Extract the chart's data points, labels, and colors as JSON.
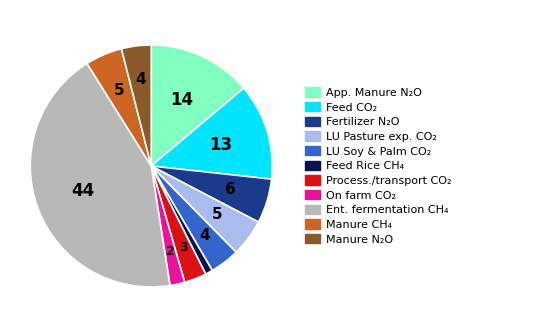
{
  "labels": [
    "App. Manure N₂O",
    "Feed CO₂",
    "Fertilizer N₂O",
    "LU Pasture exp. CO₂",
    "LU Soy & Palm CO₂",
    "Feed Rice CH₄",
    "Process./transport CO₂",
    "On farm CO₂",
    "Ent. fermentation CH₄",
    "Manure CH₄",
    "Manure N₂O"
  ],
  "values": [
    14,
    13,
    6,
    5,
    4,
    1,
    3,
    2,
    44,
    5,
    4
  ],
  "display_values": [
    "14",
    "13",
    "6",
    "5",
    "4",
    "",
    "3",
    "2",
    "44",
    "5",
    "4"
  ],
  "colors": [
    "#7FFFC0",
    "#00E5FF",
    "#1A3A8C",
    "#AABBEE",
    "#3366CC",
    "#0A1050",
    "#DD1111",
    "#EE1199",
    "#B8B8B8",
    "#CC6622",
    "#8B5A2B"
  ],
  "figsize": [
    5.5,
    3.32
  ],
  "dpi": 100,
  "startangle": 90,
  "legend_fontsize": 8.0,
  "label_fontsize": 11
}
